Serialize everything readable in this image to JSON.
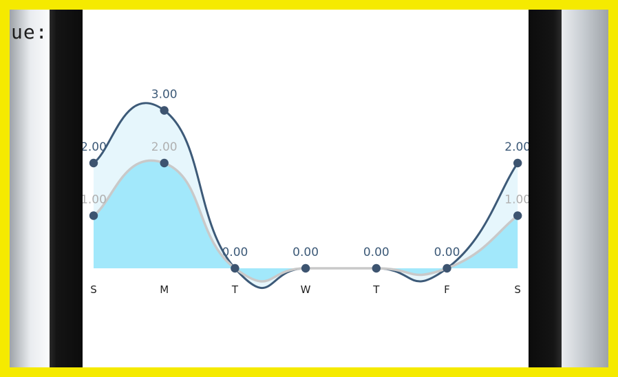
{
  "partial_label": "ue:",
  "chart_data": {
    "type": "area",
    "categories": [
      "S",
      "M",
      "T",
      "W",
      "T",
      "F",
      "S"
    ],
    "series": [
      {
        "values": [
          2,
          3,
          0,
          0,
          0,
          0,
          2
        ],
        "labels": [
          "2.00",
          "3.00",
          "0.00",
          "0.00",
          "0.00",
          "0.00",
          "2.00"
        ],
        "color": "#3d5a78",
        "fill": "#e6f6fc"
      },
      {
        "values": [
          1,
          2,
          0,
          0,
          0,
          0,
          1
        ],
        "labels": [
          "1.00",
          "2.00",
          "",
          "",
          "",
          "",
          "1.00"
        ],
        "color": "#c9c9c9",
        "fill": "#a2e8fb"
      }
    ],
    "ylim": [
      0,
      3
    ],
    "grid": false
  }
}
